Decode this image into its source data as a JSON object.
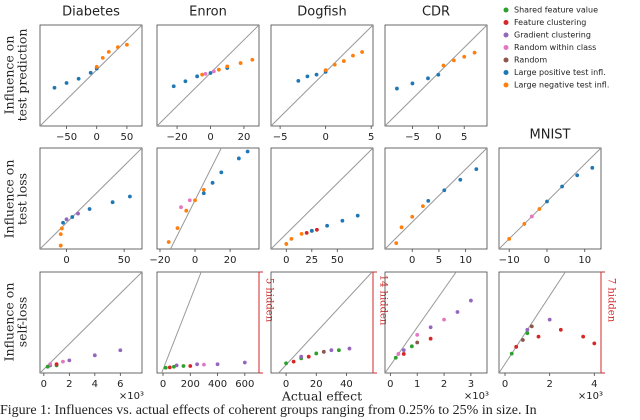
{
  "caption": "Figure 1: Influences vs. actual effects of coherent groups ranging from 0.25% to 25% in size. In",
  "legend": {
    "position": "right",
    "entries": [
      {
        "name": "Shared feature value",
        "color": "#2ca02c"
      },
      {
        "name": "Feature clustering",
        "color": "#d62728"
      },
      {
        "name": "Gradient clustering",
        "color": "#9467bd"
      },
      {
        "name": "Random within class",
        "color": "#e377c2"
      },
      {
        "name": "Random",
        "color": "#8c564b"
      },
      {
        "name": "Large positive test infl.",
        "color": "#1f77b4"
      },
      {
        "name": "Large negative test infl.",
        "color": "#ff7f0e"
      }
    ]
  },
  "chart_data": [
    {
      "type": "scatter",
      "title": "Diabetes",
      "ylabel": [
        "Influence on",
        "test prediction"
      ],
      "identity_line": true,
      "xlim": [
        -94,
        75
      ],
      "ylim": [
        -94,
        75
      ],
      "xticks": [
        {
          "value": -50,
          "label": "−50"
        },
        0,
        50
      ],
      "series": [
        {
          "name": "Large positive test infl.",
          "x": [
            -70,
            -50,
            -30,
            -10,
            0
          ],
          "values": [
            -30,
            -22,
            -15,
            -5,
            2
          ]
        },
        {
          "name": "Large negative test infl.",
          "x": [
            0,
            10,
            20,
            35,
            50
          ],
          "values": [
            5,
            20,
            30,
            38,
            42
          ]
        }
      ]
    },
    {
      "type": "scatter",
      "title": "Enron",
      "identity_line": true,
      "xlim": [
        -32,
        29
      ],
      "ylim": [
        -32,
        29
      ],
      "xticks": [
        {
          "value": -20,
          "label": "−20"
        },
        0,
        20
      ],
      "series": [
        {
          "name": "Large positive test infl.",
          "x": [
            -22,
            -15,
            -8,
            0,
            10
          ],
          "values": [
            -8,
            -5,
            -2,
            0,
            3
          ]
        },
        {
          "name": "Large negative test infl.",
          "x": [
            -5,
            5,
            10,
            18,
            25
          ],
          "values": [
            -1,
            2,
            4,
            6,
            8
          ]
        },
        {
          "name": "Random within class",
          "x": [
            -3,
            2
          ],
          "values": [
            -0.5,
            1
          ]
        }
      ]
    },
    {
      "type": "scatter",
      "title": "Dogfish",
      "identity_line": true,
      "xlim": [
        -6,
        5.2
      ],
      "ylim": [
        -6,
        5.2
      ],
      "xticks": [
        {
          "value": -5,
          "label": "−5"
        },
        0,
        5
      ],
      "series": [
        {
          "name": "Large positive test infl.",
          "x": [
            -3,
            -2,
            -1,
            0
          ],
          "values": [
            -1,
            -0.5,
            -0.3,
            0
          ]
        },
        {
          "name": "Large negative test infl.",
          "x": [
            0,
            1,
            2,
            3,
            4
          ],
          "values": [
            0.2,
            0.8,
            1.2,
            1.8,
            2.2
          ]
        }
      ]
    },
    {
      "type": "scatter",
      "title": "CDR",
      "identity_line": true,
      "xlim": [
        -10.3,
        9.4
      ],
      "ylim": [
        -10.3,
        9.4
      ],
      "xticks": [
        {
          "value": -5,
          "label": "−5"
        },
        0,
        5
      ],
      "series": [
        {
          "name": "Large positive test infl.",
          "x": [
            -8,
            -5,
            -2,
            0
          ],
          "values": [
            -3,
            -2,
            -1,
            -0.3
          ]
        },
        {
          "name": "Large negative test infl.",
          "x": [
            1,
            3,
            5,
            7
          ],
          "values": [
            1.5,
            2.5,
            3.2,
            4
          ]
        }
      ]
    },
    {
      "type": "scatter",
      "ylabel": [
        "Influence on",
        "test loss"
      ],
      "identity_line": true,
      "xlim": [
        -23,
        65.5
      ],
      "ylim": [
        -23,
        65.5
      ],
      "xticks": [
        0,
        50
      ],
      "series": [
        {
          "name": "Large negative test infl.",
          "x": [
            -5,
            -5,
            -4
          ],
          "values": [
            -20,
            -10,
            -5
          ]
        },
        {
          "name": "Large positive test infl.",
          "x": [
            -3,
            5,
            20,
            40,
            55
          ],
          "values": [
            0,
            5,
            12,
            18,
            23
          ]
        },
        {
          "name": "Gradient clustering",
          "x": [
            0,
            10
          ],
          "values": [
            3,
            8
          ]
        }
      ]
    },
    {
      "type": "scatter",
      "identity_line": true,
      "xlim": [
        -21.7,
        36.5
      ],
      "ylim": [
        -14,
        15
      ],
      "xticks": [
        {
          "value": -20,
          "label": "−20"
        },
        0,
        20
      ],
      "series": [
        {
          "name": "Large negative test infl.",
          "x": [
            -15,
            -10,
            -5,
            0,
            5
          ],
          "values": [
            -12,
            -8,
            -3,
            0,
            3
          ]
        },
        {
          "name": "Large positive test infl.",
          "x": [
            5,
            10,
            15,
            25,
            30
          ],
          "values": [
            2,
            5,
            8,
            12,
            14
          ]
        },
        {
          "name": "Random within class",
          "x": [
            -8,
            -3
          ],
          "values": [
            -2,
            0
          ]
        }
      ]
    },
    {
      "type": "scatter",
      "identity_line": true,
      "xlim": [
        -15,
        85
      ],
      "ylim": [
        -15,
        85
      ],
      "xticks": [
        0,
        25,
        50
      ],
      "series": [
        {
          "name": "Large negative test infl.",
          "x": [
            0,
            5,
            15,
            25
          ],
          "values": [
            -10,
            -5,
            0,
            3
          ]
        },
        {
          "name": "Large positive test infl.",
          "x": [
            25,
            40,
            55,
            70
          ],
          "values": [
            3,
            8,
            13,
            18
          ]
        },
        {
          "name": "Feature clustering",
          "x": [
            20,
            30
          ],
          "values": [
            1,
            4
          ]
        }
      ]
    },
    {
      "type": "scatter",
      "identity_line": true,
      "xlim": [
        -5.1,
        14
      ],
      "ylim": [
        -5.1,
        14
      ],
      "xticks": [
        0,
        5,
        10
      ],
      "series": [
        {
          "name": "Large negative test infl.",
          "x": [
            -3,
            -2,
            0,
            2
          ],
          "values": [
            -4,
            -1,
            1,
            3
          ]
        },
        {
          "name": "Large positive test infl.",
          "x": [
            3,
            6,
            9,
            12
          ],
          "values": [
            4,
            6,
            8,
            10
          ]
        }
      ]
    },
    {
      "type": "scatter",
      "title": "MNIST",
      "identity_line": true,
      "xlim": [
        -12.7,
        14.3
      ],
      "ylim": [
        -12.7,
        14.3
      ],
      "xticks": [
        {
          "value": -10,
          "label": "−10"
        },
        0,
        10
      ],
      "series": [
        {
          "name": "Large negative test infl.",
          "x": [
            -10,
            -6,
            -2
          ],
          "values": [
            -10,
            -6,
            -2
          ]
        },
        {
          "name": "Large positive test infl.",
          "x": [
            0,
            4,
            8,
            12
          ],
          "values": [
            0,
            4,
            7,
            9
          ]
        },
        {
          "name": "Random within class",
          "x": [
            -4
          ],
          "values": [
            -4
          ]
        }
      ]
    },
    {
      "type": "scatter",
      "ylabel": [
        "Influence on",
        "self-loss"
      ],
      "identity_line": true,
      "x_offset_label": "×10³",
      "xlim": [
        -0.3,
        7.7
      ],
      "ylim": [
        -0.3,
        7.7
      ],
      "xticks": [
        0,
        2,
        4,
        6
      ],
      "series": [
        {
          "name": "Gradient clustering",
          "x": [
            0.5,
            2,
            4,
            6
          ],
          "values": [
            0.3,
            0.7,
            1.1,
            1.5
          ]
        },
        {
          "name": "Random within class",
          "x": [
            0.5,
            1.5
          ],
          "values": [
            0.4,
            0.6
          ]
        },
        {
          "name": "Shared feature value",
          "x": [
            0.3,
            1
          ],
          "values": [
            0.2,
            0.3
          ]
        },
        {
          "name": "Feature clustering",
          "x": [
            1
          ],
          "values": [
            0.4
          ]
        }
      ]
    },
    {
      "type": "scatter",
      "identity_line": true,
      "annotation": "5 hidden",
      "xlim": [
        -44,
        704
      ],
      "ylim": [
        -10,
        280
      ],
      "xticks": [
        0,
        200,
        400,
        600
      ],
      "series": [
        {
          "name": "Shared feature value",
          "x": [
            20,
            80,
            150
          ],
          "values": [
            5,
            8,
            10
          ]
        },
        {
          "name": "Feature clustering",
          "x": [
            50,
            200
          ],
          "values": [
            6,
            10
          ]
        },
        {
          "name": "Gradient clustering",
          "x": [
            100,
            250,
            400,
            600
          ],
          "values": [
            12,
            15,
            15,
            20
          ]
        },
        {
          "name": "Random within class",
          "x": [
            300
          ],
          "values": [
            14
          ]
        }
      ]
    },
    {
      "type": "scatter",
      "xlabel": "Actual effect",
      "identity_line": true,
      "annotation": "14 hidden",
      "xlim": [
        -10,
        57.6
      ],
      "ylim": [
        -5,
        57
      ],
      "xticks": [
        0,
        20,
        40
      ],
      "series": [
        {
          "name": "Shared feature value",
          "x": [
            0,
            10,
            20,
            35
          ],
          "values": [
            1,
            4,
            7,
            9
          ]
        },
        {
          "name": "Feature clustering",
          "x": [
            5,
            15
          ],
          "values": [
            2,
            5
          ]
        },
        {
          "name": "Gradient clustering",
          "x": [
            10,
            30,
            42
          ],
          "values": [
            5,
            9,
            10
          ]
        },
        {
          "name": "Random",
          "x": [
            25
          ],
          "values": [
            8
          ]
        }
      ]
    },
    {
      "type": "scatter",
      "identity_line": true,
      "x_offset_label": "×10³",
      "xlim": [
        -0.2,
        3.6
      ],
      "ylim": [
        -0.2,
        2.45
      ],
      "xticks": [
        0,
        1,
        2,
        3
      ],
      "series": [
        {
          "name": "Gradient clustering",
          "x": [
            0.5,
            1.5,
            2.5,
            3
          ],
          "values": [
            0.4,
            1,
            1.4,
            1.7
          ]
        },
        {
          "name": "Random within class",
          "x": [
            0.3,
            1,
            2
          ],
          "values": [
            0.3,
            0.8,
            1.2
          ]
        },
        {
          "name": "Feature clustering",
          "x": [
            0.5,
            1.5
          ],
          "values": [
            0.3,
            0.7
          ]
        },
        {
          "name": "Shared feature value",
          "x": [
            0.2,
            0.8
          ],
          "values": [
            0.2,
            0.5
          ]
        },
        {
          "name": "Random",
          "x": [
            1
          ],
          "values": [
            0.6
          ]
        }
      ]
    },
    {
      "type": "scatter",
      "identity_line": true,
      "annotation": "7 hidden",
      "x_offset_label": "×10³",
      "xlim": [
        -0.27,
        4.3
      ],
      "ylim": [
        -0.27,
        2.7
      ],
      "xticks": [
        0,
        2,
        4
      ],
      "series": [
        {
          "name": "Feature clustering",
          "x": [
            0.5,
            1.5,
            2.5,
            3.5,
            4
          ],
          "values": [
            0.5,
            0.8,
            1,
            0.8,
            0.6
          ]
        },
        {
          "name": "Shared feature value",
          "x": [
            0.3,
            1
          ],
          "values": [
            0.3,
            0.9
          ]
        },
        {
          "name": "Random",
          "x": [
            0.8,
            1.2
          ],
          "values": [
            0.7,
            1.1
          ]
        },
        {
          "name": "Gradient clustering",
          "x": [
            1,
            2
          ],
          "values": [
            1,
            1.3
          ]
        }
      ]
    }
  ]
}
